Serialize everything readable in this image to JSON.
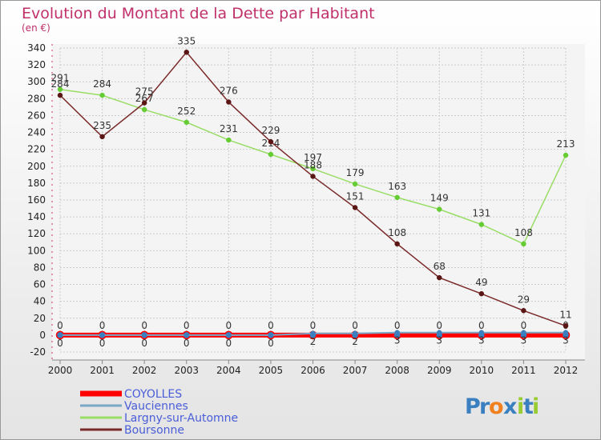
{
  "chart_data": {
    "type": "line",
    "title": "Evolution du Montant de la Dette par Habitant",
    "subtitle": "(en €)",
    "x": [
      "2000",
      "2001",
      "2002",
      "2003",
      "2004",
      "2005",
      "2006",
      "2007",
      "2008",
      "2009",
      "2010",
      "2011",
      "2012"
    ],
    "ylim": [
      -20,
      340
    ],
    "yticks": [
      -20,
      0,
      20,
      40,
      60,
      80,
      100,
      120,
      140,
      160,
      180,
      200,
      220,
      240,
      260,
      280,
      300,
      320,
      340
    ],
    "grid": true,
    "legend_position": "bottom-left",
    "series": [
      {
        "name": "COYOLLES",
        "color": "#ff0000",
        "marker_color": "#3a7fc0",
        "values": [
          0,
          0,
          0,
          0,
          0,
          0,
          0,
          0,
          0,
          0,
          0,
          0,
          0
        ]
      },
      {
        "name": "Vauciennes",
        "color": "#7aa7c7",
        "marker_color": "#3a7fc0",
        "values": [
          0,
          0,
          0,
          0,
          0,
          0,
          2,
          2,
          3,
          3,
          3,
          3,
          3
        ]
      },
      {
        "name": "Largny-sur-Automne",
        "color": "#99dd66",
        "marker_color": "#66cc33",
        "values": [
          291,
          284,
          267,
          252,
          231,
          214,
          197,
          179,
          163,
          149,
          131,
          108,
          213
        ]
      },
      {
        "name": "Boursonne",
        "color": "#7a2a2a",
        "marker_color": "#5a1515",
        "values": [
          284,
          235,
          275,
          335,
          276,
          229,
          188,
          151,
          108,
          68,
          49,
          29,
          11
        ]
      }
    ]
  },
  "logo_text": "Proxiti"
}
